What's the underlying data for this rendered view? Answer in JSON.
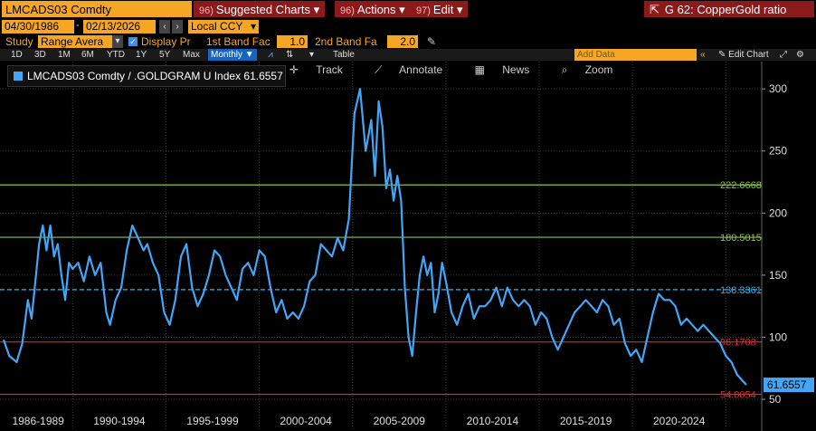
{
  "header": {
    "ticker": "LMCADS03 Comdty",
    "menus": [
      {
        "num": "96)",
        "label": "Suggested Charts",
        "arrow": "▾"
      },
      {
        "num": "96)",
        "label": "Actions",
        "arrow": "▾"
      },
      {
        "num": "97)",
        "label": "Edit",
        "arrow": "▾"
      }
    ],
    "right_title": "G 62: CopperGold ratio"
  },
  "dates": {
    "start": "04/30/1986",
    "end": "02/13/2026",
    "currency": "Local CCY"
  },
  "study": {
    "label": "Study",
    "type": "Range Avera",
    "display_label": "Display Pr",
    "band1_label": "1st Band Fac",
    "band1_value": "1.0",
    "band2_label": "2nd Band Fa",
    "band2_value": "2.0"
  },
  "toolbar": {
    "timeframes": [
      "1D",
      "3D",
      "1M",
      "6M",
      "YTD",
      "1Y",
      "5Y",
      "Max"
    ],
    "interval": "Monthly ▼",
    "table_label": "Table",
    "add_data_placeholder": "Add Data",
    "edit_chart": "Edit Chart"
  },
  "legend": {
    "text": "LMCADS03 Comdty / .GOLDGRAM U Index 61.6557"
  },
  "tools": {
    "track": "Track",
    "annotate": "Annotate",
    "news": "News",
    "zoom": "Zoom"
  },
  "colors": {
    "series": "#42a5f5",
    "upper_band": "#8bc34a",
    "mean": "#29b6f6",
    "lower_band": "#d32f2f",
    "accent": "#f5a623",
    "menu_red": "#8b1a1a"
  },
  "chart_data": {
    "type": "line",
    "title": "",
    "xlabel": "",
    "ylabel": "",
    "ylim": [
      42,
      322
    ],
    "yticks": [
      50,
      100,
      150,
      200,
      250,
      300
    ],
    "x_periods": [
      "1986-1989",
      "1990-1994",
      "1995-1999",
      "2000-2004",
      "2005-2009",
      "2010-2014",
      "2015-2019",
      "2020-2024"
    ],
    "x_range": [
      1986.3,
      2026.15
    ],
    "reference_lines": [
      {
        "label": "222.6668",
        "value": 222.6668,
        "style": "solid",
        "color": "#8bc34a"
      },
      {
        "label": "180.5015",
        "value": 180.5015,
        "style": "solid",
        "color": "#8bc34a"
      },
      {
        "label": "138.3361",
        "value": 138.3361,
        "style": "dashed",
        "color": "#29b6f6"
      },
      {
        "label": "96.1708",
        "value": 96.1708,
        "style": "solid",
        "color": "#d32f2f"
      },
      {
        "label": "54.0054",
        "value": 54.0054,
        "style": "solid",
        "color": "#d32f2f"
      }
    ],
    "last_value": "61.6557",
    "series": [
      {
        "x": [
          1986.3,
          1986.6,
          1987.0,
          1987.3,
          1987.6,
          1987.8,
          1988.0,
          1988.2,
          1988.4,
          1988.6,
          1988.8,
          1989.0,
          1989.2,
          1989.4,
          1989.6,
          1989.8,
          1990.0,
          1990.3,
          1990.6,
          1990.9,
          1991.2,
          1991.5,
          1991.8,
          1992.0,
          1992.3,
          1992.6,
          1992.9,
          1993.2,
          1993.5,
          1993.8,
          1994.0,
          1994.3,
          1994.6,
          1994.9,
          1995.2,
          1995.5,
          1995.8,
          1996.1,
          1996.4,
          1996.7,
          1997.0,
          1997.3,
          1997.6,
          1997.9,
          1998.2,
          1998.5,
          1998.8,
          1999.1,
          1999.4,
          1999.7,
          2000.0,
          2000.3,
          2000.6,
          2000.9,
          2001.2,
          2001.5,
          2001.8,
          2002.1,
          2002.4,
          2002.7,
          2003.0,
          2003.3,
          2003.6,
          2003.9,
          2004.2,
          2004.5,
          2004.8,
          2005.1,
          2005.4,
          2005.7,
          2006.0,
          2006.2,
          2006.4,
          2006.6,
          2006.8,
          2007.0,
          2007.2,
          2007.4,
          2007.6,
          2007.8,
          2008.0,
          2008.2,
          2008.4,
          2008.6,
          2008.8,
          2009.0,
          2009.2,
          2009.4,
          2009.6,
          2009.8,
          2010.0,
          2010.3,
          2010.6,
          2010.9,
          2011.2,
          2011.5,
          2011.8,
          2012.1,
          2012.4,
          2012.7,
          2013.0,
          2013.3,
          2013.6,
          2013.9,
          2014.2,
          2014.5,
          2014.8,
          2015.1,
          2015.4,
          2015.7,
          2016.0,
          2016.3,
          2016.6,
          2016.9,
          2017.2,
          2017.5,
          2017.8,
          2018.1,
          2018.4,
          2018.7,
          2019.0,
          2019.3,
          2019.6,
          2019.9,
          2020.2,
          2020.5,
          2020.8,
          2021.1,
          2021.4,
          2021.7,
          2022.0,
          2022.3,
          2022.6,
          2022.9,
          2023.2,
          2023.5,
          2023.8,
          2024.1,
          2024.4,
          2024.7,
          2025.0,
          2025.3,
          2025.6,
          2025.9,
          2026.1
        ],
        "values": [
          98,
          85,
          80,
          95,
          130,
          115,
          145,
          175,
          190,
          170,
          190,
          165,
          175,
          150,
          130,
          160,
          155,
          160,
          145,
          165,
          150,
          160,
          120,
          110,
          130,
          140,
          170,
          190,
          180,
          170,
          175,
          160,
          150,
          120,
          110,
          130,
          165,
          175,
          140,
          125,
          135,
          150,
          170,
          165,
          150,
          140,
          130,
          155,
          160,
          150,
          170,
          165,
          140,
          120,
          130,
          115,
          120,
          115,
          125,
          145,
          150,
          175,
          170,
          165,
          180,
          170,
          195,
          280,
          300,
          250,
          275,
          230,
          290,
          270,
          220,
          235,
          210,
          230,
          210,
          140,
          100,
          85,
          120,
          150,
          165,
          150,
          160,
          120,
          135,
          160,
          145,
          120,
          110,
          125,
          135,
          115,
          125,
          125,
          130,
          140,
          125,
          140,
          130,
          125,
          130,
          125,
          110,
          120,
          115,
          100,
          90,
          100,
          110,
          120,
          125,
          130,
          125,
          120,
          130,
          125,
          110,
          115,
          95,
          85,
          90,
          80,
          100,
          120,
          135,
          130,
          130,
          125,
          110,
          115,
          110,
          105,
          110,
          105,
          100,
          95,
          85,
          80,
          70,
          65,
          61.6557
        ]
      }
    ]
  }
}
